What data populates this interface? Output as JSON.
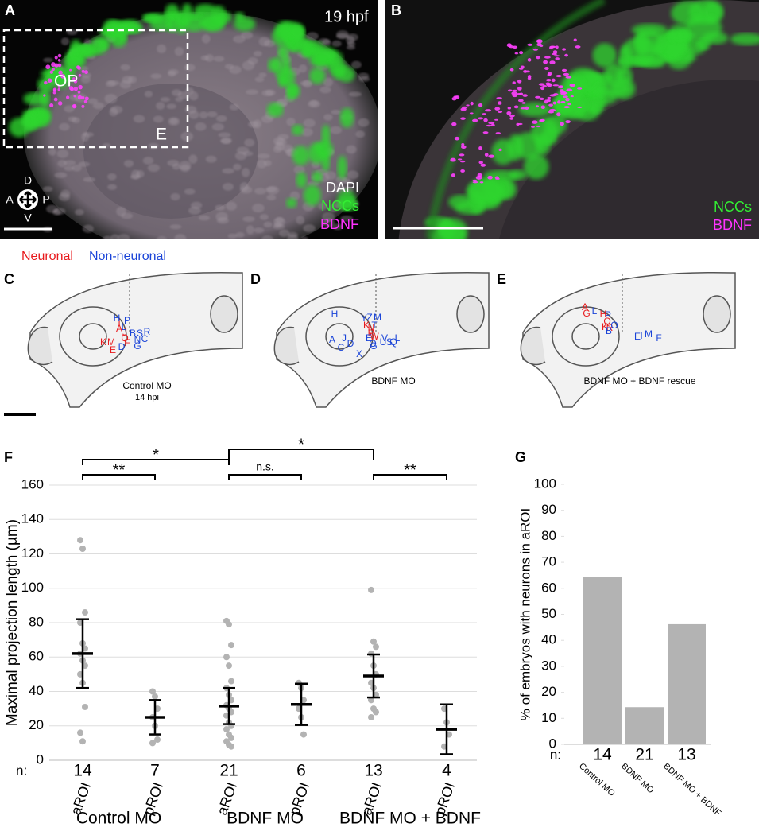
{
  "figure": {
    "panel_labels": [
      "A",
      "B",
      "C",
      "D",
      "E",
      "F",
      "G"
    ],
    "image_a": {
      "time": "19 hpf",
      "regions": [
        "OP",
        "E"
      ],
      "axes": [
        "D",
        "A",
        "P",
        "V"
      ],
      "channels": [
        "DAPI",
        "NCCs",
        "BDNF"
      ],
      "channel_colors": [
        "#ffffff",
        "#33ee33",
        "#ff33ff"
      ]
    },
    "image_b": {
      "channels": [
        "NCCs",
        "BDNF"
      ],
      "channel_colors": [
        "#33ee33",
        "#ff33ff"
      ]
    },
    "legend": [
      {
        "name": "Neuronal",
        "color": "#e8191c"
      },
      {
        "name": "Non-neuronal",
        "color": "#1a44d8"
      }
    ],
    "schematics": [
      {
        "label": "Control MO",
        "sublabel": "14 hpi",
        "neuronal": [
          "I",
          "A",
          "J",
          "Q",
          "F",
          "K",
          "M",
          "E"
        ],
        "non_neuronal": [
          "H",
          "P",
          "L",
          "B",
          "S",
          "R",
          "N",
          "C",
          "D",
          "G"
        ]
      },
      {
        "label": "BDNF MO",
        "neuronal": [
          "K",
          "N",
          "R",
          "W"
        ],
        "non_neuronal": [
          "H",
          "Y",
          "Z",
          "M",
          "T",
          "A",
          "J",
          "C",
          "D",
          "E",
          "O",
          "G",
          "V",
          "L",
          "U",
          "S",
          "Q",
          "X"
        ]
      },
      {
        "label": "BDNF MO + BDNF rescue",
        "neuronal": [
          "G",
          "A",
          "H",
          "Q",
          "K",
          "R"
        ],
        "non_neuronal": [
          "L",
          "P",
          "B",
          "O",
          "E",
          "I",
          "M",
          "F"
        ]
      }
    ]
  },
  "chart_data": [
    {
      "type": "dot",
      "ylabel": "Maximal projection length (µm)",
      "ylim": [
        0,
        160
      ],
      "yticks": [
        0,
        20,
        40,
        60,
        80,
        100,
        120,
        140,
        160
      ],
      "grid": true,
      "n_label": "n:",
      "categories": [
        "aROI",
        "pROI",
        "aROI",
        "pROI",
        "aROI",
        "pROI"
      ],
      "n": [
        14,
        7,
        21,
        6,
        13,
        4
      ],
      "groups": [
        "Control MO",
        "BDNF MO",
        "BDNF MO + BDNF"
      ],
      "points": [
        [
          128,
          123,
          86,
          80,
          68,
          65,
          62,
          58,
          55,
          50,
          45,
          31,
          16,
          11
        ],
        [
          40,
          37,
          30,
          25,
          20,
          12,
          10
        ],
        [
          81,
          79,
          67,
          60,
          55,
          46,
          42,
          38,
          35,
          32,
          30,
          28,
          26,
          22,
          20,
          18,
          15,
          13,
          11,
          9,
          8
        ],
        [
          45,
          42,
          35,
          30,
          25,
          15
        ],
        [
          99,
          69,
          66,
          62,
          55,
          50,
          45,
          42,
          38,
          35,
          30,
          28,
          25
        ],
        [
          30,
          22,
          15,
          8
        ]
      ],
      "means": [
        62,
        25,
        31.5,
        32.5,
        49,
        18
      ],
      "errors": [
        20,
        10,
        10.5,
        12,
        12.5,
        14.5
      ],
      "point_color": "#b3b3b3",
      "mean_color": "#000000",
      "significance": [
        "*",
        "*",
        "**",
        "n.s.",
        "**"
      ]
    },
    {
      "type": "bar",
      "ylabel": "% of embryos with neurons in aROI",
      "ylim": [
        0,
        100
      ],
      "yticks": [
        0,
        10,
        20,
        30,
        40,
        50,
        60,
        70,
        80,
        90,
        100
      ],
      "grid": false,
      "n_label": "n:",
      "categories": [
        "Control MO",
        "BDNF MO",
        "BDNF MO + BDNF"
      ],
      "n": [
        14,
        21,
        13
      ],
      "values": [
        64.3,
        14.3,
        46.2
      ],
      "color": "#b3b3b3"
    }
  ]
}
